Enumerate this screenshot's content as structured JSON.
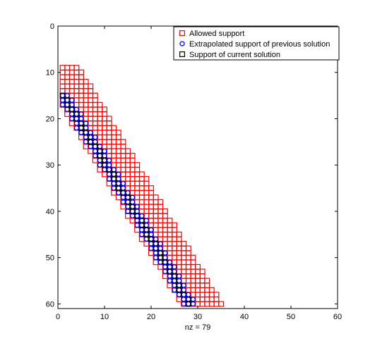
{
  "chart_data": {
    "type": "scatter",
    "title": "",
    "xlabel": "nz = 79",
    "ylabel": "",
    "xlim": [
      0,
      60
    ],
    "ylim": [
      0,
      61
    ],
    "y_reversed": true,
    "x_ticks": [
      0,
      10,
      20,
      30,
      40,
      50,
      60
    ],
    "y_ticks": [
      0,
      10,
      20,
      30,
      40,
      50,
      60
    ],
    "x_tick_labels": [
      "0",
      "10",
      "20",
      "30",
      "40",
      "50",
      "60"
    ],
    "y_tick_labels": [
      "0",
      "10",
      "20",
      "30",
      "40",
      "50",
      "60"
    ],
    "grid": false,
    "legend_position": "top-right",
    "series": [
      {
        "name": "Allowed support",
        "marker": "square",
        "color": "#ff0000",
        "band": {
          "row_start": 9,
          "row_end": 60,
          "slope": 0.6,
          "offset": -5.2,
          "half_width": 4
        }
      },
      {
        "name": "Extrapolated support of previous solution",
        "marker": "circle",
        "color": "#0000ff",
        "band": {
          "row_start": 15,
          "row_end": 60,
          "slope": 0.6,
          "offset": -7.7,
          "half_width": 1
        }
      },
      {
        "name": "Support of current solution",
        "marker": "square",
        "color": "#000000",
        "band": {
          "row_start": 15,
          "row_end": 60,
          "slope": 0.6,
          "offset": -7.7,
          "half_width": 0
        }
      }
    ]
  }
}
